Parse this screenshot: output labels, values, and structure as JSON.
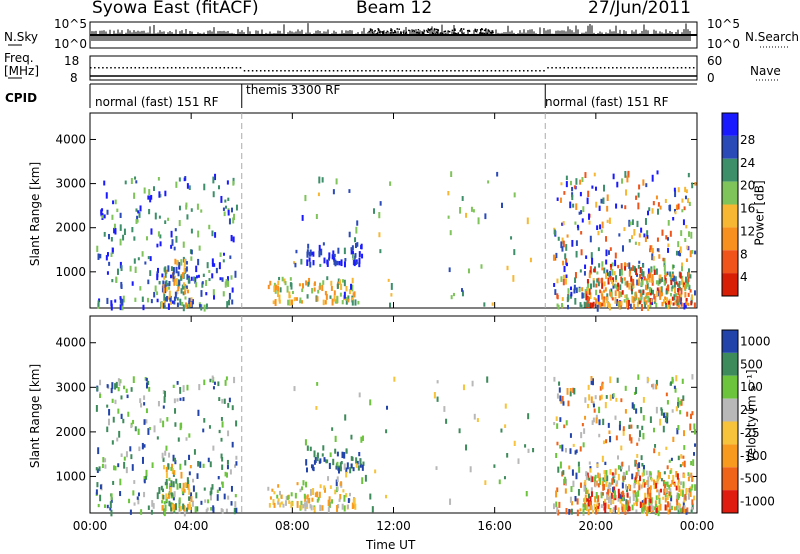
{
  "header": {
    "station": "Syowa East (fitACF)",
    "beam": "Beam 12",
    "date": "27/Jun/2011"
  },
  "strip": {
    "left_labels": [
      "N.Sky",
      "Freq.",
      "[MHz]",
      "CPID"
    ],
    "right_labels": [
      "N.Search",
      "Nave"
    ],
    "sky_ticks": [
      "10^5",
      "10^0"
    ],
    "search_ticks": [
      "10^5",
      "10^0"
    ],
    "freq_ticks": [
      "18",
      "8"
    ],
    "nave_ticks": [
      "60",
      "0"
    ],
    "cpid_segments": [
      {
        "label": "normal (fast) 151 RF",
        "start": 0,
        "end": 6
      },
      {
        "label": "themis 3300 RF",
        "start": 6,
        "end": 18
      },
      {
        "label": "normal (fast) 151 RF",
        "start": 18,
        "end": 24
      }
    ]
  },
  "chart_data": [
    {
      "type": "heatmap",
      "title": "Power",
      "xlabel": "Time UT",
      "ylabel": "Slant Range [km]",
      "xlim": [
        0,
        24
      ],
      "ylim": [
        180,
        4600
      ],
      "x_ticks": [
        "00:00",
        "04:00",
        "08:00",
        "12:00",
        "16:00",
        "20:00",
        "00:00"
      ],
      "y_ticks": [
        "1000",
        "2000",
        "3000",
        "4000"
      ],
      "colorbar": {
        "label": "Power [dB]",
        "ticks": [
          "4",
          "8",
          "12",
          "16",
          "20",
          "24",
          "28"
        ],
        "colors": [
          "#1a1aff",
          "#2a4ab8",
          "#3d8f6a",
          "#7fc45a",
          "#f7b733",
          "#f7901e",
          "#f0541a",
          "#d81e05"
        ]
      }
    },
    {
      "type": "heatmap",
      "title": "Velocity",
      "xlabel": "Time UT",
      "ylabel": "Slant Range [km]",
      "xlim": [
        0,
        24
      ],
      "ylim": [
        180,
        4600
      ],
      "x_ticks": [
        "00:00",
        "04:00",
        "08:00",
        "12:00",
        "16:00",
        "20:00",
        "00:00"
      ],
      "y_ticks": [
        "1000",
        "2000",
        "3000",
        "4000"
      ],
      "colorbar": {
        "label": "Velocity [m s⁻¹]",
        "ticks": [
          "1000",
          "500",
          "100",
          "25",
          "-25",
          "-100",
          "-500",
          "-1000"
        ],
        "colors": [
          "#2244aa",
          "#3d8a5a",
          "#6cc43c",
          "#b8b8b8",
          "#f7c33a",
          "#f79a1e",
          "#f0641a",
          "#e01b10"
        ]
      }
    }
  ]
}
